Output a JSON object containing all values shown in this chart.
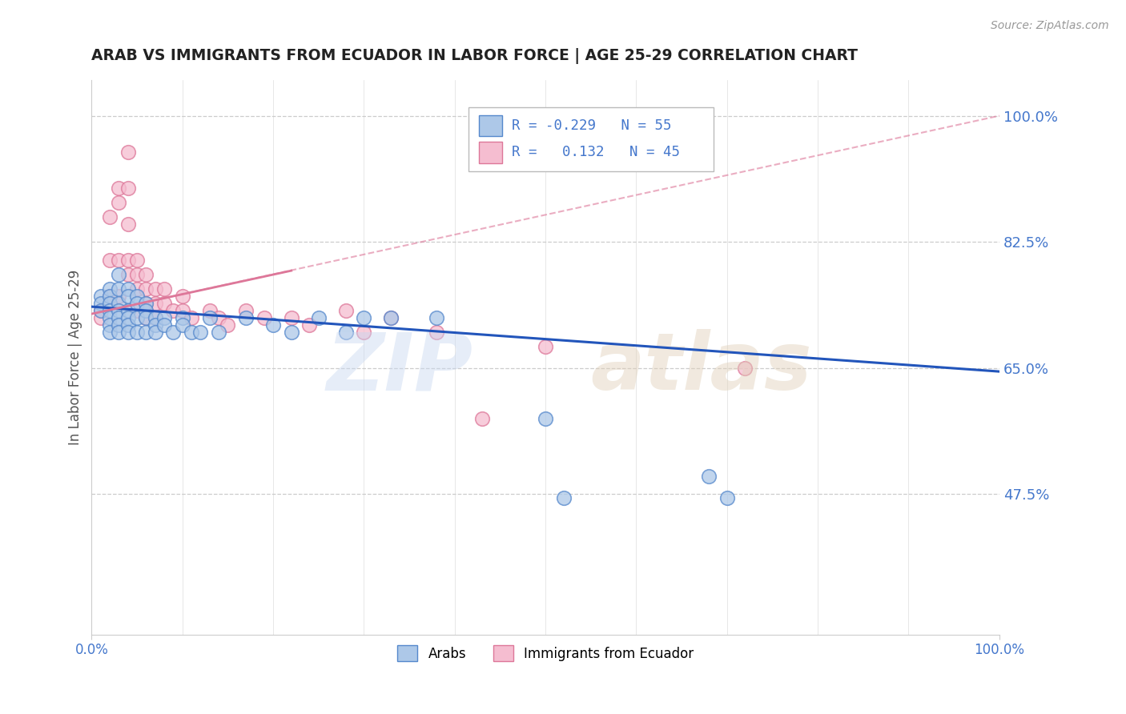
{
  "title": "ARAB VS IMMIGRANTS FROM ECUADOR IN LABOR FORCE | AGE 25-29 CORRELATION CHART",
  "source": "Source: ZipAtlas.com",
  "ylabel": "In Labor Force | Age 25-29",
  "x_min": 0.0,
  "x_max": 1.0,
  "y_min": 0.28,
  "y_max": 1.05,
  "x_tick_labels": [
    "0.0%",
    "100.0%"
  ],
  "y_tick_labels_right": [
    "100.0%",
    "82.5%",
    "65.0%",
    "47.5%"
  ],
  "y_tick_values_right": [
    1.0,
    0.825,
    0.65,
    0.475
  ],
  "arab_R": "-0.229",
  "arab_N": "55",
  "ecuador_R": "0.132",
  "ecuador_N": "45",
  "arab_color": "#adc8e8",
  "arab_edge_color": "#5588cc",
  "ecuador_color": "#f5bdd0",
  "ecuador_edge_color": "#dd7799",
  "arab_line_color": "#2255bb",
  "ecuador_line_color": "#dd7799",
  "legend_box_arab": "#adc8e8",
  "legend_box_ecuador": "#f5bdd0",
  "background_color": "#ffffff",
  "grid_color": "#cccccc",
  "title_color": "#222222",
  "axis_label_color": "#555555",
  "right_label_color": "#4477cc",
  "bottom_label_color": "#4477cc",
  "arab_scatter_x": [
    0.01,
    0.01,
    0.01,
    0.02,
    0.02,
    0.02,
    0.02,
    0.02,
    0.02,
    0.02,
    0.03,
    0.03,
    0.03,
    0.03,
    0.03,
    0.03,
    0.03,
    0.04,
    0.04,
    0.04,
    0.04,
    0.04,
    0.04,
    0.05,
    0.05,
    0.05,
    0.05,
    0.06,
    0.06,
    0.06,
    0.06,
    0.07,
    0.07,
    0.07,
    0.08,
    0.08,
    0.09,
    0.1,
    0.1,
    0.11,
    0.12,
    0.13,
    0.14,
    0.17,
    0.2,
    0.22,
    0.25,
    0.28,
    0.3,
    0.33,
    0.38,
    0.5,
    0.52,
    0.68,
    0.7
  ],
  "arab_scatter_y": [
    0.75,
    0.74,
    0.73,
    0.76,
    0.75,
    0.74,
    0.73,
    0.72,
    0.71,
    0.7,
    0.78,
    0.76,
    0.74,
    0.73,
    0.72,
    0.71,
    0.7,
    0.76,
    0.75,
    0.73,
    0.72,
    0.71,
    0.7,
    0.75,
    0.74,
    0.72,
    0.7,
    0.74,
    0.73,
    0.72,
    0.7,
    0.72,
    0.71,
    0.7,
    0.72,
    0.71,
    0.7,
    0.72,
    0.71,
    0.7,
    0.7,
    0.72,
    0.7,
    0.72,
    0.71,
    0.7,
    0.72,
    0.7,
    0.72,
    0.72,
    0.72,
    0.58,
    0.47,
    0.5,
    0.47
  ],
  "ecuador_scatter_x": [
    0.01,
    0.01,
    0.02,
    0.02,
    0.02,
    0.03,
    0.03,
    0.03,
    0.03,
    0.04,
    0.04,
    0.04,
    0.04,
    0.04,
    0.05,
    0.05,
    0.05,
    0.05,
    0.06,
    0.06,
    0.06,
    0.06,
    0.07,
    0.07,
    0.07,
    0.08,
    0.08,
    0.09,
    0.1,
    0.1,
    0.11,
    0.13,
    0.14,
    0.15,
    0.17,
    0.19,
    0.22,
    0.24,
    0.28,
    0.3,
    0.33,
    0.38,
    0.43,
    0.5,
    0.72
  ],
  "ecuador_scatter_y": [
    0.73,
    0.72,
    0.86,
    0.8,
    0.75,
    0.9,
    0.88,
    0.8,
    0.75,
    0.95,
    0.9,
    0.85,
    0.8,
    0.78,
    0.8,
    0.78,
    0.76,
    0.73,
    0.78,
    0.76,
    0.74,
    0.72,
    0.76,
    0.74,
    0.72,
    0.76,
    0.74,
    0.73,
    0.75,
    0.73,
    0.72,
    0.73,
    0.72,
    0.71,
    0.73,
    0.72,
    0.72,
    0.71,
    0.73,
    0.7,
    0.72,
    0.7,
    0.58,
    0.68,
    0.65
  ],
  "arab_trend_x0": 0.0,
  "arab_trend_y0": 0.735,
  "arab_trend_x1": 1.0,
  "arab_trend_y1": 0.645,
  "ecuador_trend_x0": 0.0,
  "ecuador_trend_y0": 0.725,
  "ecuador_trend_x1": 1.0,
  "ecuador_trend_y1": 1.0,
  "ecuador_trend_solid_x1": 0.22,
  "ecuador_trend_solid_y1": 0.785
}
